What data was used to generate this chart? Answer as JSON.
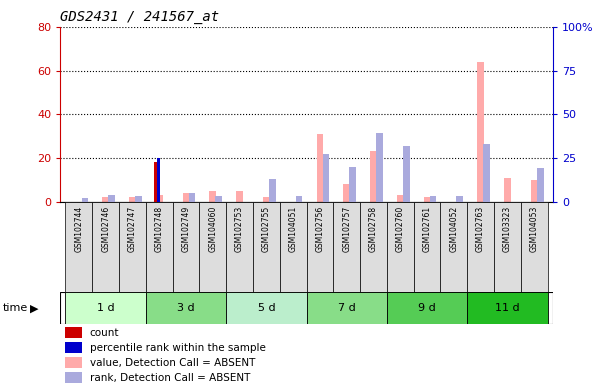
{
  "title": "GDS2431 / 241567_at",
  "samples": [
    "GSM102744",
    "GSM102746",
    "GSM102747",
    "GSM102748",
    "GSM102749",
    "GSM104060",
    "GSM102753",
    "GSM102755",
    "GSM104051",
    "GSM102756",
    "GSM102757",
    "GSM102758",
    "GSM102760",
    "GSM102761",
    "GSM104052",
    "GSM102763",
    "GSM103323",
    "GSM104053"
  ],
  "time_groups": [
    {
      "label": "1 d",
      "start": 0,
      "end": 3
    },
    {
      "label": "3 d",
      "start": 3,
      "end": 6
    },
    {
      "label": "5 d",
      "start": 6,
      "end": 9
    },
    {
      "label": "7 d",
      "start": 9,
      "end": 12
    },
    {
      "label": "9 d",
      "start": 12,
      "end": 15
    },
    {
      "label": "11 d",
      "start": 15,
      "end": 18
    }
  ],
  "time_colors": [
    "#ccffcc",
    "#88dd88",
    "#bbeecc",
    "#88dd88",
    "#55cc55",
    "#22bb22"
  ],
  "count_values": [
    0,
    0,
    0,
    18,
    0,
    0,
    0,
    0,
    0,
    0,
    0,
    0,
    0,
    0,
    0,
    0,
    0,
    0
  ],
  "percentile_values": [
    0,
    0,
    0,
    25,
    0,
    0,
    0,
    0,
    0,
    0,
    0,
    0,
    0,
    0,
    0,
    0,
    0,
    0
  ],
  "value_absent": [
    0,
    2,
    2,
    3,
    4,
    5,
    5,
    2,
    0,
    31,
    8,
    23,
    3,
    2,
    0,
    64,
    11,
    10
  ],
  "rank_absent": [
    2,
    4,
    3,
    0,
    5,
    3,
    0,
    13,
    3,
    27,
    20,
    39,
    32,
    3,
    3,
    33,
    0,
    19
  ],
  "ylim_left": [
    0,
    80
  ],
  "ylim_right": [
    0,
    100
  ],
  "yticks_left": [
    0,
    20,
    40,
    60,
    80
  ],
  "yticks_right": [
    0,
    25,
    50,
    75,
    100
  ],
  "ytick_labels_right": [
    "0",
    "25",
    "50",
    "75",
    "100%"
  ],
  "background_color": "#ffffff",
  "plot_bg": "#ffffff",
  "left_axis_color": "#cc0000",
  "right_axis_color": "#0000cc",
  "value_absent_color": "#ffaaaa",
  "rank_absent_color": "#aaaadd",
  "count_color": "#cc0000",
  "percentile_color": "#0000cc",
  "label_bg": "#dddddd",
  "bar_width": 0.25
}
